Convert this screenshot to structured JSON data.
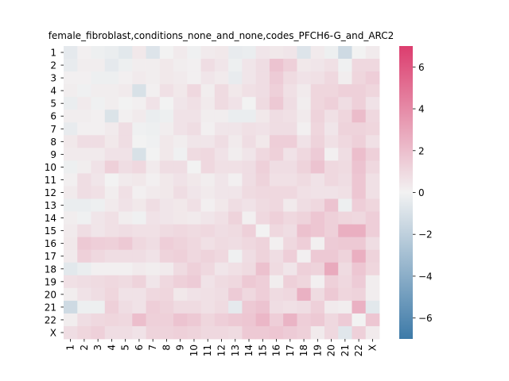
{
  "chart_data": {
    "type": "heatmap",
    "title": "female_fibroblast,conditions_none_and_none,codes_PFCH6-G_and_ARC2",
    "xlabel": "",
    "ylabel": "",
    "x_tick_labels": [
      "1",
      "2",
      "3",
      "4",
      "5",
      "6",
      "7",
      "8",
      "9",
      "10",
      "11",
      "12",
      "13",
      "14",
      "15",
      "16",
      "17",
      "18",
      "19",
      "20",
      "21",
      "22",
      "X"
    ],
    "y_tick_labels": [
      "1",
      "2",
      "3",
      "4",
      "5",
      "6",
      "7",
      "8",
      "9",
      "10",
      "11",
      "12",
      "13",
      "14",
      "15",
      "16",
      "17",
      "18",
      "19",
      "20",
      "21",
      "22",
      "X"
    ],
    "colorbar": {
      "vmin": -7,
      "vmax": 7,
      "ticks": [
        -6,
        -4,
        -2,
        0,
        2,
        4,
        6
      ],
      "tick_labels": [
        "−6",
        "−4",
        "−2",
        "0",
        "2",
        "4",
        "6"
      ],
      "low_color": "#3d7aa8",
      "mid_color": "#f2f2f2",
      "high_color": "#dc3d6e"
    },
    "values": [
      [
        -0.5,
        0.1,
        -0.2,
        -0.3,
        -0.6,
        0.4,
        -0.8,
        0.0,
        0.3,
        -0.1,
        0.3,
        0.4,
        -0.4,
        -0.3,
        0.5,
        0.4,
        0.5,
        -0.8,
        0.3,
        -0.2,
        -1.4,
        0.0,
        0.3
      ],
      [
        -0.4,
        0.2,
        0.2,
        -0.5,
        -0.2,
        0.2,
        0.2,
        0.4,
        0.2,
        0.1,
        0.8,
        0.5,
        -0.2,
        0.5,
        0.8,
        1.8,
        1.3,
        0.4,
        0.5,
        0.7,
        -0.1,
        1.0,
        1.0
      ],
      [
        0.1,
        0.1,
        -0.2,
        -0.2,
        0.1,
        0.3,
        0.2,
        0.4,
        0.3,
        0.1,
        0.5,
        0.3,
        -0.4,
        0.5,
        0.8,
        1.5,
        0.9,
        0.6,
        0.7,
        1.0,
        0.2,
        1.1,
        1.4
      ],
      [
        0.2,
        -0.1,
        0.2,
        0.2,
        0.3,
        -1.0,
        0.1,
        0.7,
        0.4,
        1.0,
        0.2,
        0.9,
        0.4,
        0.7,
        0.8,
        1.3,
        0.7,
        0.3,
        1.1,
        1.1,
        1.3,
        1.3,
        1.1
      ],
      [
        -0.3,
        0.3,
        -0.1,
        0.2,
        0.0,
        0.1,
        0.6,
        0.0,
        0.5,
        0.7,
        0.3,
        0.9,
        0.6,
        0.0,
        0.9,
        1.6,
        0.8,
        0.2,
        1.1,
        1.3,
        0.8,
        1.3,
        0.6
      ],
      [
        0.2,
        0.2,
        0.1,
        -0.9,
        0.1,
        0.3,
        -0.3,
        -0.2,
        0.6,
        0.6,
        0.2,
        0.2,
        -0.3,
        -0.3,
        0.4,
        0.8,
        0.7,
        0.3,
        1.2,
        0.7,
        1.1,
        2.1,
        1.0
      ],
      [
        -0.4,
        0.1,
        0.1,
        0.3,
        0.8,
        -0.1,
        -0.2,
        0.2,
        0.6,
        0.8,
        0.1,
        0.5,
        0.5,
        0.7,
        0.6,
        0.8,
        0.8,
        0.1,
        1.1,
        0.5,
        1.2,
        1.2,
        1.1
      ],
      [
        0.4,
        0.8,
        0.8,
        0.4,
        0.8,
        0.0,
        -0.1,
        0.4,
        0.2,
        0.5,
        0.5,
        0.8,
        0.3,
        0.8,
        0.4,
        1.4,
        1.4,
        0.6,
        1.2,
        0.7,
        1.0,
        1.3,
        0.7
      ],
      [
        0.3,
        0.3,
        0.3,
        0.6,
        0.6,
        -1.0,
        0.0,
        0.4,
        -0.1,
        0.9,
        1.0,
        0.6,
        0.2,
        0.5,
        1.0,
        1.3,
        0.6,
        1.0,
        1.5,
        0.1,
        0.8,
        2.0,
        1.3
      ],
      [
        -0.2,
        0.2,
        0.6,
        1.3,
        0.8,
        1.0,
        0.3,
        0.8,
        0.8,
        0.0,
        1.0,
        0.7,
        0.7,
        0.8,
        1.3,
        0.8,
        0.8,
        1.2,
        1.8,
        1.0,
        0.9,
        1.8,
        1.0
      ],
      [
        0.1,
        0.8,
        0.5,
        0.0,
        0.3,
        0.4,
        0.1,
        0.4,
        0.6,
        0.4,
        0.2,
        0.5,
        0.1,
        0.8,
        1.2,
        0.7,
        0.7,
        0.9,
        0.6,
        1.0,
        0.8,
        1.7,
        0.7
      ],
      [
        0.3,
        0.8,
        0.7,
        0.2,
        0.7,
        0.1,
        0.3,
        0.4,
        0.8,
        0.5,
        0.3,
        0.5,
        0.5,
        0.9,
        1.0,
        1.0,
        1.0,
        0.7,
        0.6,
        0.6,
        0.7,
        1.7,
        0.7
      ],
      [
        -0.3,
        -0.3,
        -0.2,
        0.3,
        0.6,
        0.4,
        0.8,
        0.5,
        0.4,
        0.7,
        0.1,
        0.4,
        0.8,
        0.6,
        0.9,
        1.0,
        0.3,
        0.8,
        1.0,
        1.8,
        -0.2,
        1.4,
        1.1
      ],
      [
        0.2,
        -0.1,
        0.5,
        0.7,
        0.2,
        -0.1,
        0.6,
        0.5,
        0.4,
        0.3,
        0.5,
        0.7,
        1.2,
        0.1,
        1.0,
        1.3,
        1.0,
        1.2,
        1.7,
        1.3,
        1.1,
        1.0,
        1.4
      ],
      [
        0.3,
        0.8,
        0.5,
        0.7,
        0.8,
        0.7,
        0.7,
        0.9,
        1.0,
        0.9,
        1.0,
        0.8,
        0.9,
        1.3,
        0.0,
        1.0,
        0.8,
        1.9,
        1.7,
        1.3,
        2.6,
        2.6,
        1.4
      ],
      [
        0.4,
        1.6,
        1.4,
        1.3,
        1.6,
        1.0,
        0.8,
        1.4,
        1.2,
        1.0,
        0.7,
        0.9,
        0.8,
        1.0,
        1.2,
        0.1,
        1.0,
        1.4,
        0.1,
        1.5,
        1.6,
        1.6,
        0.8
      ],
      [
        0.3,
        1.3,
        1.0,
        0.8,
        0.8,
        0.8,
        0.6,
        1.2,
        1.3,
        1.0,
        1.2,
        1.0,
        -0.1,
        0.8,
        1.2,
        0.8,
        1.4,
        0.1,
        1.6,
        1.6,
        1.2,
        2.6,
        1.2
      ],
      [
        -0.6,
        -0.3,
        0.1,
        0.1,
        0.1,
        0.3,
        0.2,
        0.3,
        0.9,
        1.3,
        1.0,
        0.5,
        0.7,
        0.9,
        1.9,
        0.9,
        0.5,
        1.3,
        1.2,
        2.8,
        0.9,
        1.7,
        1.1
      ],
      [
        0.7,
        0.8,
        0.9,
        1.0,
        0.9,
        1.2,
        0.5,
        1.0,
        1.3,
        1.5,
        0.6,
        0.9,
        1.0,
        1.6,
        1.4,
        0.2,
        1.3,
        1.1,
        0.1,
        1.3,
        1.0,
        1.5,
        0.2
      ],
      [
        0.2,
        0.6,
        0.8,
        1.1,
        0.6,
        0.6,
        1.0,
        1.1,
        0.4,
        0.6,
        0.7,
        0.8,
        1.5,
        1.0,
        1.4,
        0.9,
        1.0,
        2.5,
        0.9,
        1.6,
        1.1,
        1.2,
        0.2
      ],
      [
        -1.4,
        -0.2,
        -0.2,
        1.3,
        0.8,
        0.6,
        1.4,
        1.2,
        0.9,
        0.9,
        0.7,
        0.9,
        -0.5,
        1.6,
        1.8,
        0.8,
        0.7,
        0.8,
        1.3,
        0.3,
        0.2,
        2.5,
        -0.6
      ],
      [
        0.2,
        0.8,
        1.0,
        1.1,
        1.0,
        2.0,
        1.3,
        1.3,
        1.8,
        1.6,
        1.1,
        1.4,
        1.6,
        1.7,
        2.3,
        1.4,
        2.4,
        1.4,
        1.6,
        1.0,
        1.5,
        0.0,
        1.7
      ],
      [
        0.8,
        1.1,
        1.3,
        0.8,
        0.8,
        0.6,
        1.2,
        1.2,
        1.3,
        1.2,
        1.0,
        1.0,
        0.9,
        1.6,
        1.6,
        1.7,
        1.5,
        1.3,
        0.3,
        1.0,
        -0.7,
        1.3,
        0.3
      ]
    ]
  }
}
